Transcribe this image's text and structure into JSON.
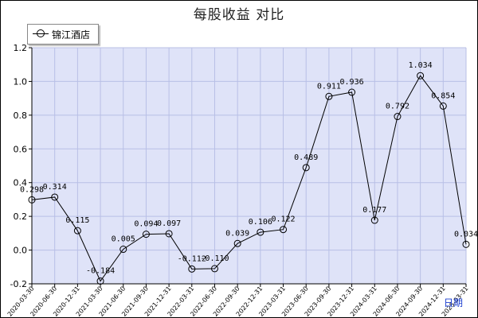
{
  "chart_data": {
    "type": "line",
    "title": "每股收益  对比",
    "xlabel": "日期",
    "ylabel": "",
    "ylim": [
      -0.2,
      1.2
    ],
    "yticks": [
      "1.2",
      "1.0",
      "0.8",
      "0.6",
      "0.4",
      "0.2",
      "0.0",
      "-0.2"
    ],
    "grid": true,
    "legend_position": "top-left",
    "colors": {
      "plot_bg": "#dfe3f8",
      "line": "#000000",
      "grid": "#b8bfe6"
    },
    "x": [
      "2020-03-30",
      "2020-06-30",
      "2020-12-31",
      "2021-03-30",
      "2021-06-30",
      "2021-09-30",
      "2021-12-31",
      "2022-03-31",
      "2022-06-30",
      "2022-09-30",
      "2022-12-31",
      "2023-03-31",
      "2023-06-30",
      "2023-09-30",
      "2023-12-31",
      "2024-03-31",
      "2024-06-30",
      "2024-09-30",
      "2024-12-31",
      "2025-03-31"
    ],
    "series": [
      {
        "name": "锦江酒店",
        "values": [
          0.298,
          0.314,
          0.115,
          -0.184,
          0.005,
          0.094,
          0.097,
          -0.112,
          -0.11,
          0.039,
          0.106,
          0.122,
          0.489,
          0.911,
          0.936,
          0.177,
          0.792,
          1.034,
          0.854,
          0.034
        ],
        "labels": [
          "0.298",
          "0.314",
          "0.115",
          "-0.184",
          "0.005",
          "0.094",
          "0.097",
          "-0.112",
          "-0.110",
          "0.039",
          "0.106",
          "0.122",
          "0.489",
          "0.911",
          "0.936",
          "0.177",
          "0.792",
          "1.034",
          "0.854",
          "0.034"
        ]
      }
    ]
  }
}
